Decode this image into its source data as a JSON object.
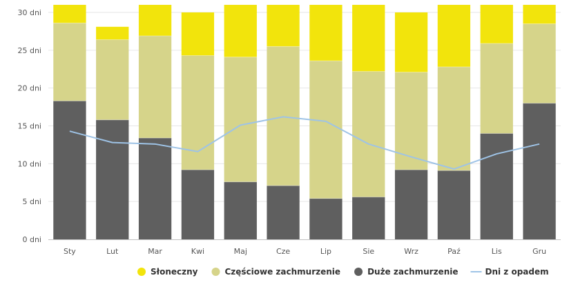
{
  "chart_data": {
    "type": "bar",
    "stacked": true,
    "categories": [
      "Sty",
      "Lut",
      "Mar",
      "Kwi",
      "Maj",
      "Cze",
      "Lip",
      "Sie",
      "Wrz",
      "Paź",
      "Lis",
      "Gru"
    ],
    "y_tick_labels": [
      "0 dni",
      "5 dni",
      "10 dni",
      "15 dni",
      "20 dni",
      "25 dni",
      "30 dni"
    ],
    "ylim": [
      0,
      30
    ],
    "grid": true,
    "legend_position": "bottom",
    "series": [
      {
        "name": "Duże zachmurzenie",
        "type": "bar",
        "color": "#5f5f5f",
        "values": [
          18.3,
          15.8,
          13.4,
          9.2,
          7.6,
          7.1,
          5.4,
          5.6,
          9.2,
          9.1,
          14.0,
          18.0
        ]
      },
      {
        "name": "Częściowe zachmurzenie",
        "type": "bar",
        "color": "#d6d48a",
        "values": [
          10.3,
          10.6,
          13.5,
          15.1,
          16.5,
          18.4,
          18.2,
          16.6,
          12.9,
          13.7,
          11.9,
          10.5
        ]
      },
      {
        "name": "Słoneczny",
        "type": "bar",
        "color": "#f2e40c",
        "values": [
          2.4,
          1.7,
          4.1,
          5.7,
          6.9,
          5.5,
          7.4,
          8.8,
          7.9,
          8.2,
          5.1,
          2.5
        ]
      },
      {
        "name": "Dni z opadem",
        "type": "line",
        "color": "#9ec3e6",
        "values": [
          14.3,
          12.8,
          12.6,
          11.6,
          15.1,
          16.2,
          15.6,
          12.6,
          10.9,
          9.3,
          11.3,
          12.6
        ]
      }
    ],
    "legend_order": [
      "Słoneczny",
      "Częściowe zachmurzenie",
      "Duże zachmurzenie",
      "Dni z opadem"
    ]
  }
}
